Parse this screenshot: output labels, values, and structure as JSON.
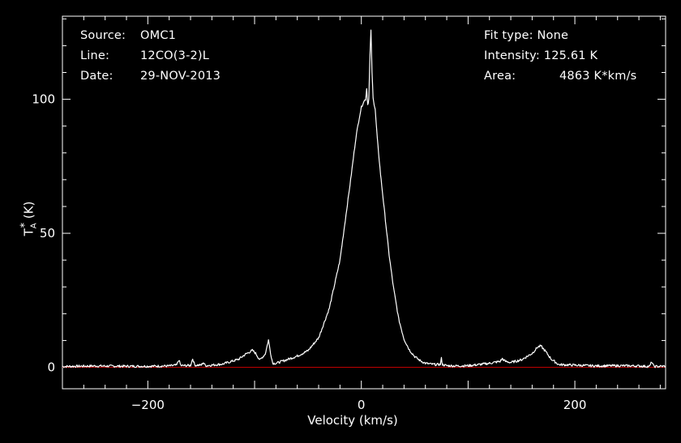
{
  "header": {
    "source_label": "Source:",
    "source_value": "OMC1",
    "line_label": "Line:",
    "line_value": "12CO(3-2)L",
    "date_label": "Date:",
    "date_value": "29-NOV-2013",
    "fit_label": "Fit type:",
    "fit_value": "None",
    "intensity_label": "Intensity:",
    "intensity_value": "125.61 K",
    "area_label": "Area:",
    "area_value": "4863 K*km/s"
  },
  "colors": {
    "background": "#000000",
    "spectrum": "#ffffff",
    "baseline": "#c00000",
    "axes": "#ffffff"
  },
  "chart_data": {
    "type": "line",
    "title": "",
    "xlabel": "Velocity (km/s)",
    "ylabel": "T",
    "ylabel_sub": "A",
    "ylabel_sup": "*",
    "ylabel_unit": "(K)",
    "xlim": [
      -280,
      285
    ],
    "ylim": [
      -8,
      131
    ],
    "xticks": [
      -200,
      0,
      200
    ],
    "xtick_labels": [
      "−200",
      "0",
      "200"
    ],
    "yticks": [
      0,
      50,
      100
    ],
    "ytick_labels": [
      "0",
      "50",
      "100"
    ],
    "baseline_y": 0,
    "grid": false,
    "series": [
      {
        "x": [
          -280,
          -250,
          -220,
          -200,
          -180,
          -173,
          -171,
          -169,
          -160,
          -158,
          -156,
          -150,
          -148,
          -146,
          -130,
          -115,
          -108,
          -102,
          -99,
          -95,
          -90,
          -87,
          -85,
          -83,
          -80,
          -70,
          -60,
          -50,
          -40,
          -30,
          -20,
          -15,
          -10,
          -5,
          -2,
          0,
          2,
          4,
          5,
          6,
          7,
          8,
          9,
          10,
          11,
          12,
          13,
          15,
          18,
          22,
          26,
          30,
          35,
          40,
          45,
          50,
          55,
          60,
          65,
          70,
          74,
          75,
          76,
          80,
          90,
          100,
          110,
          120,
          130,
          132,
          135,
          140,
          150,
          160,
          165,
          168,
          172,
          178,
          185,
          200,
          220,
          240,
          260,
          270,
          272,
          274,
          285
        ],
        "y": [
          0.3,
          0.5,
          0.4,
          0.4,
          0.5,
          0.8,
          2.8,
          0.6,
          0.7,
          3.2,
          0.8,
          0.8,
          1.8,
          0.6,
          1.2,
          3,
          5,
          6.3,
          5.2,
          2.7,
          5,
          10.2,
          5.3,
          1.5,
          1.5,
          2.8,
          4.2,
          6.2,
          11,
          22,
          40,
          55,
          70,
          86,
          93,
          97,
          99,
          100,
          104,
          98,
          100,
          115,
          126,
          110,
          101,
          98,
          96,
          85,
          72,
          57,
          42,
          30,
          18,
          10.5,
          6.5,
          4,
          2.5,
          1.5,
          1.2,
          1,
          1.1,
          3.3,
          1,
          0.6,
          0.5,
          0.6,
          1,
          1.5,
          2.2,
          3.2,
          2.2,
          1.8,
          2.8,
          5.2,
          7.5,
          8,
          6.2,
          3,
          1,
          0.8,
          0.5,
          0.6,
          0.5,
          0.3,
          2.1,
          0.3,
          0.4
        ]
      }
    ]
  }
}
